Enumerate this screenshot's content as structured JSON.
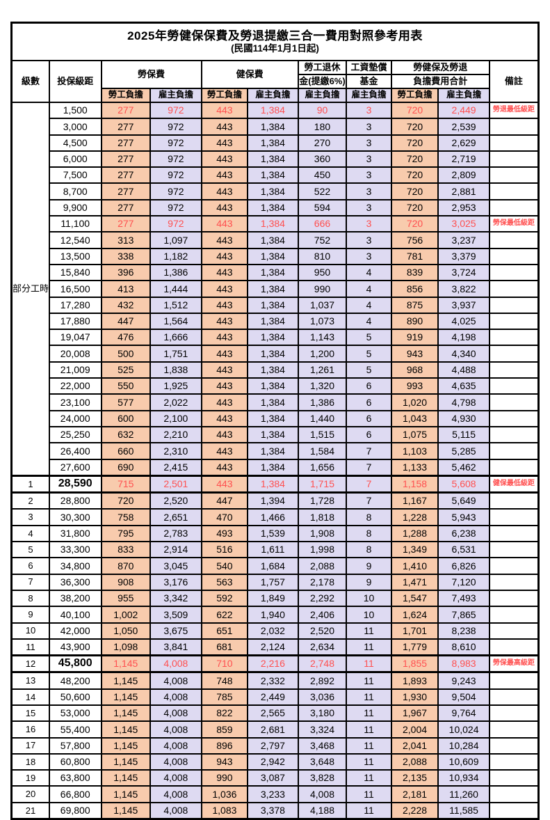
{
  "title": "2025年勞健保保費及勞退提繳三合一費用對照參考用表",
  "subtitle": "(民國114年1月1日起)",
  "colors": {
    "labor_self_bg": "#F8CBAD",
    "employer_bg": "#DEDAF2",
    "highlight_red": "#FF5050",
    "border": "#000000"
  },
  "header": {
    "level": "級數",
    "bracket": "投保級距",
    "labor_group": "勞保費",
    "health_group": "健保費",
    "pension_line1": "勞工退休",
    "pension_line2": "金(提繳6%)",
    "fund_line1": "工資墊償",
    "fund_line2": "基金",
    "total_line1": "勞健保及勞退",
    "total_line2": "負擔費用合計",
    "remark": "備註",
    "self_pay": "勞工負擔",
    "employer_pay": "雇主負擔"
  },
  "part_time": {
    "label": "部分工時",
    "span": 23
  },
  "rows": [
    {
      "level": "",
      "bracket": "1,500",
      "values": [
        "277",
        "972",
        "443",
        "1,384",
        "90",
        "3",
        "720",
        "2,449"
      ],
      "remark": "勞退最低級距",
      "red": true,
      "strong": false
    },
    {
      "level": "",
      "bracket": "3,000",
      "values": [
        "277",
        "972",
        "443",
        "1,384",
        "180",
        "3",
        "720",
        "2,539"
      ],
      "remark": "",
      "red": false,
      "strong": false
    },
    {
      "level": "",
      "bracket": "4,500",
      "values": [
        "277",
        "972",
        "443",
        "1,384",
        "270",
        "3",
        "720",
        "2,629"
      ],
      "remark": "",
      "red": false,
      "strong": false
    },
    {
      "level": "",
      "bracket": "6,000",
      "values": [
        "277",
        "972",
        "443",
        "1,384",
        "360",
        "3",
        "720",
        "2,719"
      ],
      "remark": "",
      "red": false,
      "strong": false
    },
    {
      "level": "",
      "bracket": "7,500",
      "values": [
        "277",
        "972",
        "443",
        "1,384",
        "450",
        "3",
        "720",
        "2,809"
      ],
      "remark": "",
      "red": false,
      "strong": false
    },
    {
      "level": "",
      "bracket": "8,700",
      "values": [
        "277",
        "972",
        "443",
        "1,384",
        "522",
        "3",
        "720",
        "2,881"
      ],
      "remark": "",
      "red": false,
      "strong": false
    },
    {
      "level": "",
      "bracket": "9,900",
      "values": [
        "277",
        "972",
        "443",
        "1,384",
        "594",
        "3",
        "720",
        "2,953"
      ],
      "remark": "",
      "red": false,
      "strong": false
    },
    {
      "level": "",
      "bracket": "11,100",
      "values": [
        "277",
        "972",
        "443",
        "1,384",
        "666",
        "3",
        "720",
        "3,025"
      ],
      "remark": "勞保最低級距",
      "red": true,
      "strong": false
    },
    {
      "level": "",
      "bracket": "12,540",
      "values": [
        "313",
        "1,097",
        "443",
        "1,384",
        "752",
        "3",
        "756",
        "3,237"
      ],
      "remark": "",
      "red": false,
      "strong": false
    },
    {
      "level": "",
      "bracket": "13,500",
      "values": [
        "338",
        "1,182",
        "443",
        "1,384",
        "810",
        "3",
        "781",
        "3,379"
      ],
      "remark": "",
      "red": false,
      "strong": false
    },
    {
      "level": "",
      "bracket": "15,840",
      "values": [
        "396",
        "1,386",
        "443",
        "1,384",
        "950",
        "4",
        "839",
        "3,724"
      ],
      "remark": "",
      "red": false,
      "strong": false
    },
    {
      "level": "",
      "bracket": "16,500",
      "values": [
        "413",
        "1,444",
        "443",
        "1,384",
        "990",
        "4",
        "856",
        "3,822"
      ],
      "remark": "",
      "red": false,
      "strong": false
    },
    {
      "level": "",
      "bracket": "17,280",
      "values": [
        "432",
        "1,512",
        "443",
        "1,384",
        "1,037",
        "4",
        "875",
        "3,937"
      ],
      "remark": "",
      "red": false,
      "strong": false
    },
    {
      "level": "",
      "bracket": "17,880",
      "values": [
        "447",
        "1,564",
        "443",
        "1,384",
        "1,073",
        "4",
        "890",
        "4,025"
      ],
      "remark": "",
      "red": false,
      "strong": false
    },
    {
      "level": "",
      "bracket": "19,047",
      "values": [
        "476",
        "1,666",
        "443",
        "1,384",
        "1,143",
        "5",
        "919",
        "4,198"
      ],
      "remark": "",
      "red": false,
      "strong": false
    },
    {
      "level": "",
      "bracket": "20,008",
      "values": [
        "500",
        "1,751",
        "443",
        "1,384",
        "1,200",
        "5",
        "943",
        "4,340"
      ],
      "remark": "",
      "red": false,
      "strong": false
    },
    {
      "level": "",
      "bracket": "21,009",
      "values": [
        "525",
        "1,838",
        "443",
        "1,384",
        "1,261",
        "5",
        "968",
        "4,488"
      ],
      "remark": "",
      "red": false,
      "strong": false
    },
    {
      "level": "",
      "bracket": "22,000",
      "values": [
        "550",
        "1,925",
        "443",
        "1,384",
        "1,320",
        "6",
        "993",
        "4,635"
      ],
      "remark": "",
      "red": false,
      "strong": false
    },
    {
      "level": "",
      "bracket": "23,100",
      "values": [
        "577",
        "2,022",
        "443",
        "1,384",
        "1,386",
        "6",
        "1,020",
        "4,798"
      ],
      "remark": "",
      "red": false,
      "strong": false
    },
    {
      "level": "",
      "bracket": "24,000",
      "values": [
        "600",
        "2,100",
        "443",
        "1,384",
        "1,440",
        "6",
        "1,043",
        "4,930"
      ],
      "remark": "",
      "red": false,
      "strong": false
    },
    {
      "level": "",
      "bracket": "25,250",
      "values": [
        "632",
        "2,210",
        "443",
        "1,384",
        "1,515",
        "6",
        "1,075",
        "5,115"
      ],
      "remark": "",
      "red": false,
      "strong": false
    },
    {
      "level": "",
      "bracket": "26,400",
      "values": [
        "660",
        "2,310",
        "443",
        "1,384",
        "1,584",
        "7",
        "1,103",
        "5,285"
      ],
      "remark": "",
      "red": false,
      "strong": false
    },
    {
      "level": "",
      "bracket": "27,600",
      "values": [
        "690",
        "2,415",
        "443",
        "1,384",
        "1,656",
        "7",
        "1,133",
        "5,462"
      ],
      "remark": "",
      "red": false,
      "strong": false
    },
    {
      "level": "1",
      "bracket": "28,590",
      "values": [
        "715",
        "2,501",
        "443",
        "1,384",
        "1,715",
        "7",
        "1,158",
        "5,608"
      ],
      "remark": "健保最低級距",
      "red": true,
      "strong": true
    },
    {
      "level": "2",
      "bracket": "28,800",
      "values": [
        "720",
        "2,520",
        "447",
        "1,394",
        "1,728",
        "7",
        "1,167",
        "5,649"
      ],
      "remark": "",
      "red": false,
      "strong": false
    },
    {
      "level": "3",
      "bracket": "30,300",
      "values": [
        "758",
        "2,651",
        "470",
        "1,466",
        "1,818",
        "8",
        "1,228",
        "5,943"
      ],
      "remark": "",
      "red": false,
      "strong": false
    },
    {
      "level": "4",
      "bracket": "31,800",
      "values": [
        "795",
        "2,783",
        "493",
        "1,539",
        "1,908",
        "8",
        "1,288",
        "6,238"
      ],
      "remark": "",
      "red": false,
      "strong": false
    },
    {
      "level": "5",
      "bracket": "33,300",
      "values": [
        "833",
        "2,914",
        "516",
        "1,611",
        "1,998",
        "8",
        "1,349",
        "6,531"
      ],
      "remark": "",
      "red": false,
      "strong": false
    },
    {
      "level": "6",
      "bracket": "34,800",
      "values": [
        "870",
        "3,045",
        "540",
        "1,684",
        "2,088",
        "9",
        "1,410",
        "6,826"
      ],
      "remark": "",
      "red": false,
      "strong": false
    },
    {
      "level": "7",
      "bracket": "36,300",
      "values": [
        "908",
        "3,176",
        "563",
        "1,757",
        "2,178",
        "9",
        "1,471",
        "7,120"
      ],
      "remark": "",
      "red": false,
      "strong": false
    },
    {
      "level": "8",
      "bracket": "38,200",
      "values": [
        "955",
        "3,342",
        "592",
        "1,849",
        "2,292",
        "10",
        "1,547",
        "7,493"
      ],
      "remark": "",
      "red": false,
      "strong": false
    },
    {
      "level": "9",
      "bracket": "40,100",
      "values": [
        "1,002",
        "3,509",
        "622",
        "1,940",
        "2,406",
        "10",
        "1,624",
        "7,865"
      ],
      "remark": "",
      "red": false,
      "strong": false
    },
    {
      "level": "10",
      "bracket": "42,000",
      "values": [
        "1,050",
        "3,675",
        "651",
        "2,032",
        "2,520",
        "11",
        "1,701",
        "8,238"
      ],
      "remark": "",
      "red": false,
      "strong": false
    },
    {
      "level": "11",
      "bracket": "43,900",
      "values": [
        "1,098",
        "3,841",
        "681",
        "2,124",
        "2,634",
        "11",
        "1,779",
        "8,610"
      ],
      "remark": "",
      "red": false,
      "strong": false
    },
    {
      "level": "12",
      "bracket": "45,800",
      "values": [
        "1,145",
        "4,008",
        "710",
        "2,216",
        "2,748",
        "11",
        "1,855",
        "8,983"
      ],
      "remark": "勞保最高級距",
      "red": true,
      "strong": true
    },
    {
      "level": "13",
      "bracket": "48,200",
      "values": [
        "1,145",
        "4,008",
        "748",
        "2,332",
        "2,892",
        "11",
        "1,893",
        "9,243"
      ],
      "remark": "",
      "red": false,
      "strong": false
    },
    {
      "level": "14",
      "bracket": "50,600",
      "values": [
        "1,145",
        "4,008",
        "785",
        "2,449",
        "3,036",
        "11",
        "1,930",
        "9,504"
      ],
      "remark": "",
      "red": false,
      "strong": false
    },
    {
      "level": "15",
      "bracket": "53,000",
      "values": [
        "1,145",
        "4,008",
        "822",
        "2,565",
        "3,180",
        "11",
        "1,967",
        "9,764"
      ],
      "remark": "",
      "red": false,
      "strong": false
    },
    {
      "level": "16",
      "bracket": "55,400",
      "values": [
        "1,145",
        "4,008",
        "859",
        "2,681",
        "3,324",
        "11",
        "2,004",
        "10,024"
      ],
      "remark": "",
      "red": false,
      "strong": false
    },
    {
      "level": "17",
      "bracket": "57,800",
      "values": [
        "1,145",
        "4,008",
        "896",
        "2,797",
        "3,468",
        "11",
        "2,041",
        "10,284"
      ],
      "remark": "",
      "red": false,
      "strong": false
    },
    {
      "level": "18",
      "bracket": "60,800",
      "values": [
        "1,145",
        "4,008",
        "943",
        "2,942",
        "3,648",
        "11",
        "2,088",
        "10,609"
      ],
      "remark": "",
      "red": false,
      "strong": false
    },
    {
      "level": "19",
      "bracket": "63,800",
      "values": [
        "1,145",
        "4,008",
        "990",
        "3,087",
        "3,828",
        "11",
        "2,135",
        "10,934"
      ],
      "remark": "",
      "red": false,
      "strong": false
    },
    {
      "level": "20",
      "bracket": "66,800",
      "values": [
        "1,145",
        "4,008",
        "1,036",
        "3,233",
        "4,008",
        "11",
        "2,181",
        "11,260"
      ],
      "remark": "",
      "red": false,
      "strong": false
    },
    {
      "level": "21",
      "bracket": "69,800",
      "values": [
        "1,145",
        "4,008",
        "1,083",
        "3,378",
        "4,188",
        "11",
        "2,228",
        "11,585"
      ],
      "remark": "",
      "red": false,
      "strong": false
    }
  ]
}
